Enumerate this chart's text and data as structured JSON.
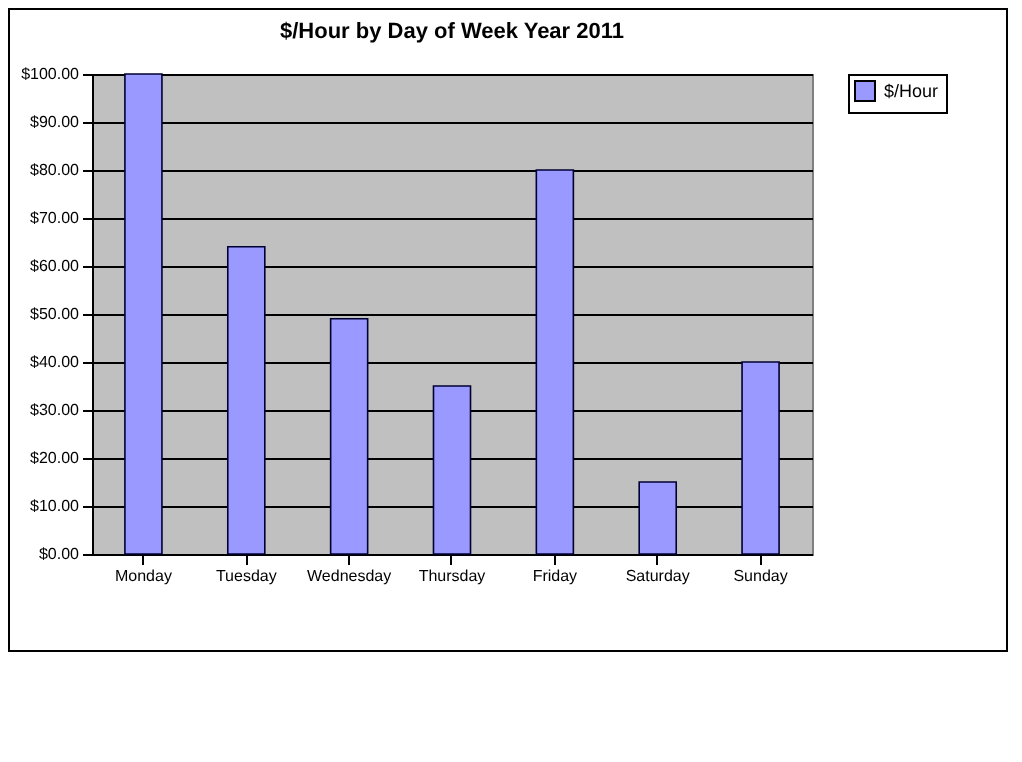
{
  "chart_data": {
    "type": "bar",
    "title": "$/Hour by Day of Week Year 2011",
    "categories": [
      "Monday",
      "Tuesday",
      "Wednesday",
      "Thursday",
      "Friday",
      "Saturday",
      "Sunday"
    ],
    "series": [
      {
        "name": "$/Hour",
        "color": "#9999ff",
        "values": [
          100,
          64,
          49,
          35,
          80,
          15,
          40
        ]
      }
    ],
    "ylim": [
      0,
      100
    ],
    "yticks": [
      {
        "value": 0,
        "label": "$0.00"
      },
      {
        "value": 10,
        "label": "$10.00"
      },
      {
        "value": 20,
        "label": "$20.00"
      },
      {
        "value": 30,
        "label": "$30.00"
      },
      {
        "value": 40,
        "label": "$40.00"
      },
      {
        "value": 50,
        "label": "$50.00"
      },
      {
        "value": 60,
        "label": "$60.00"
      },
      {
        "value": 70,
        "label": "$70.00"
      },
      {
        "value": 80,
        "label": "$80.00"
      },
      {
        "value": 90,
        "label": "$90.00"
      },
      {
        "value": 100,
        "label": "$100.00"
      }
    ],
    "grid": "y",
    "legend": "right"
  }
}
